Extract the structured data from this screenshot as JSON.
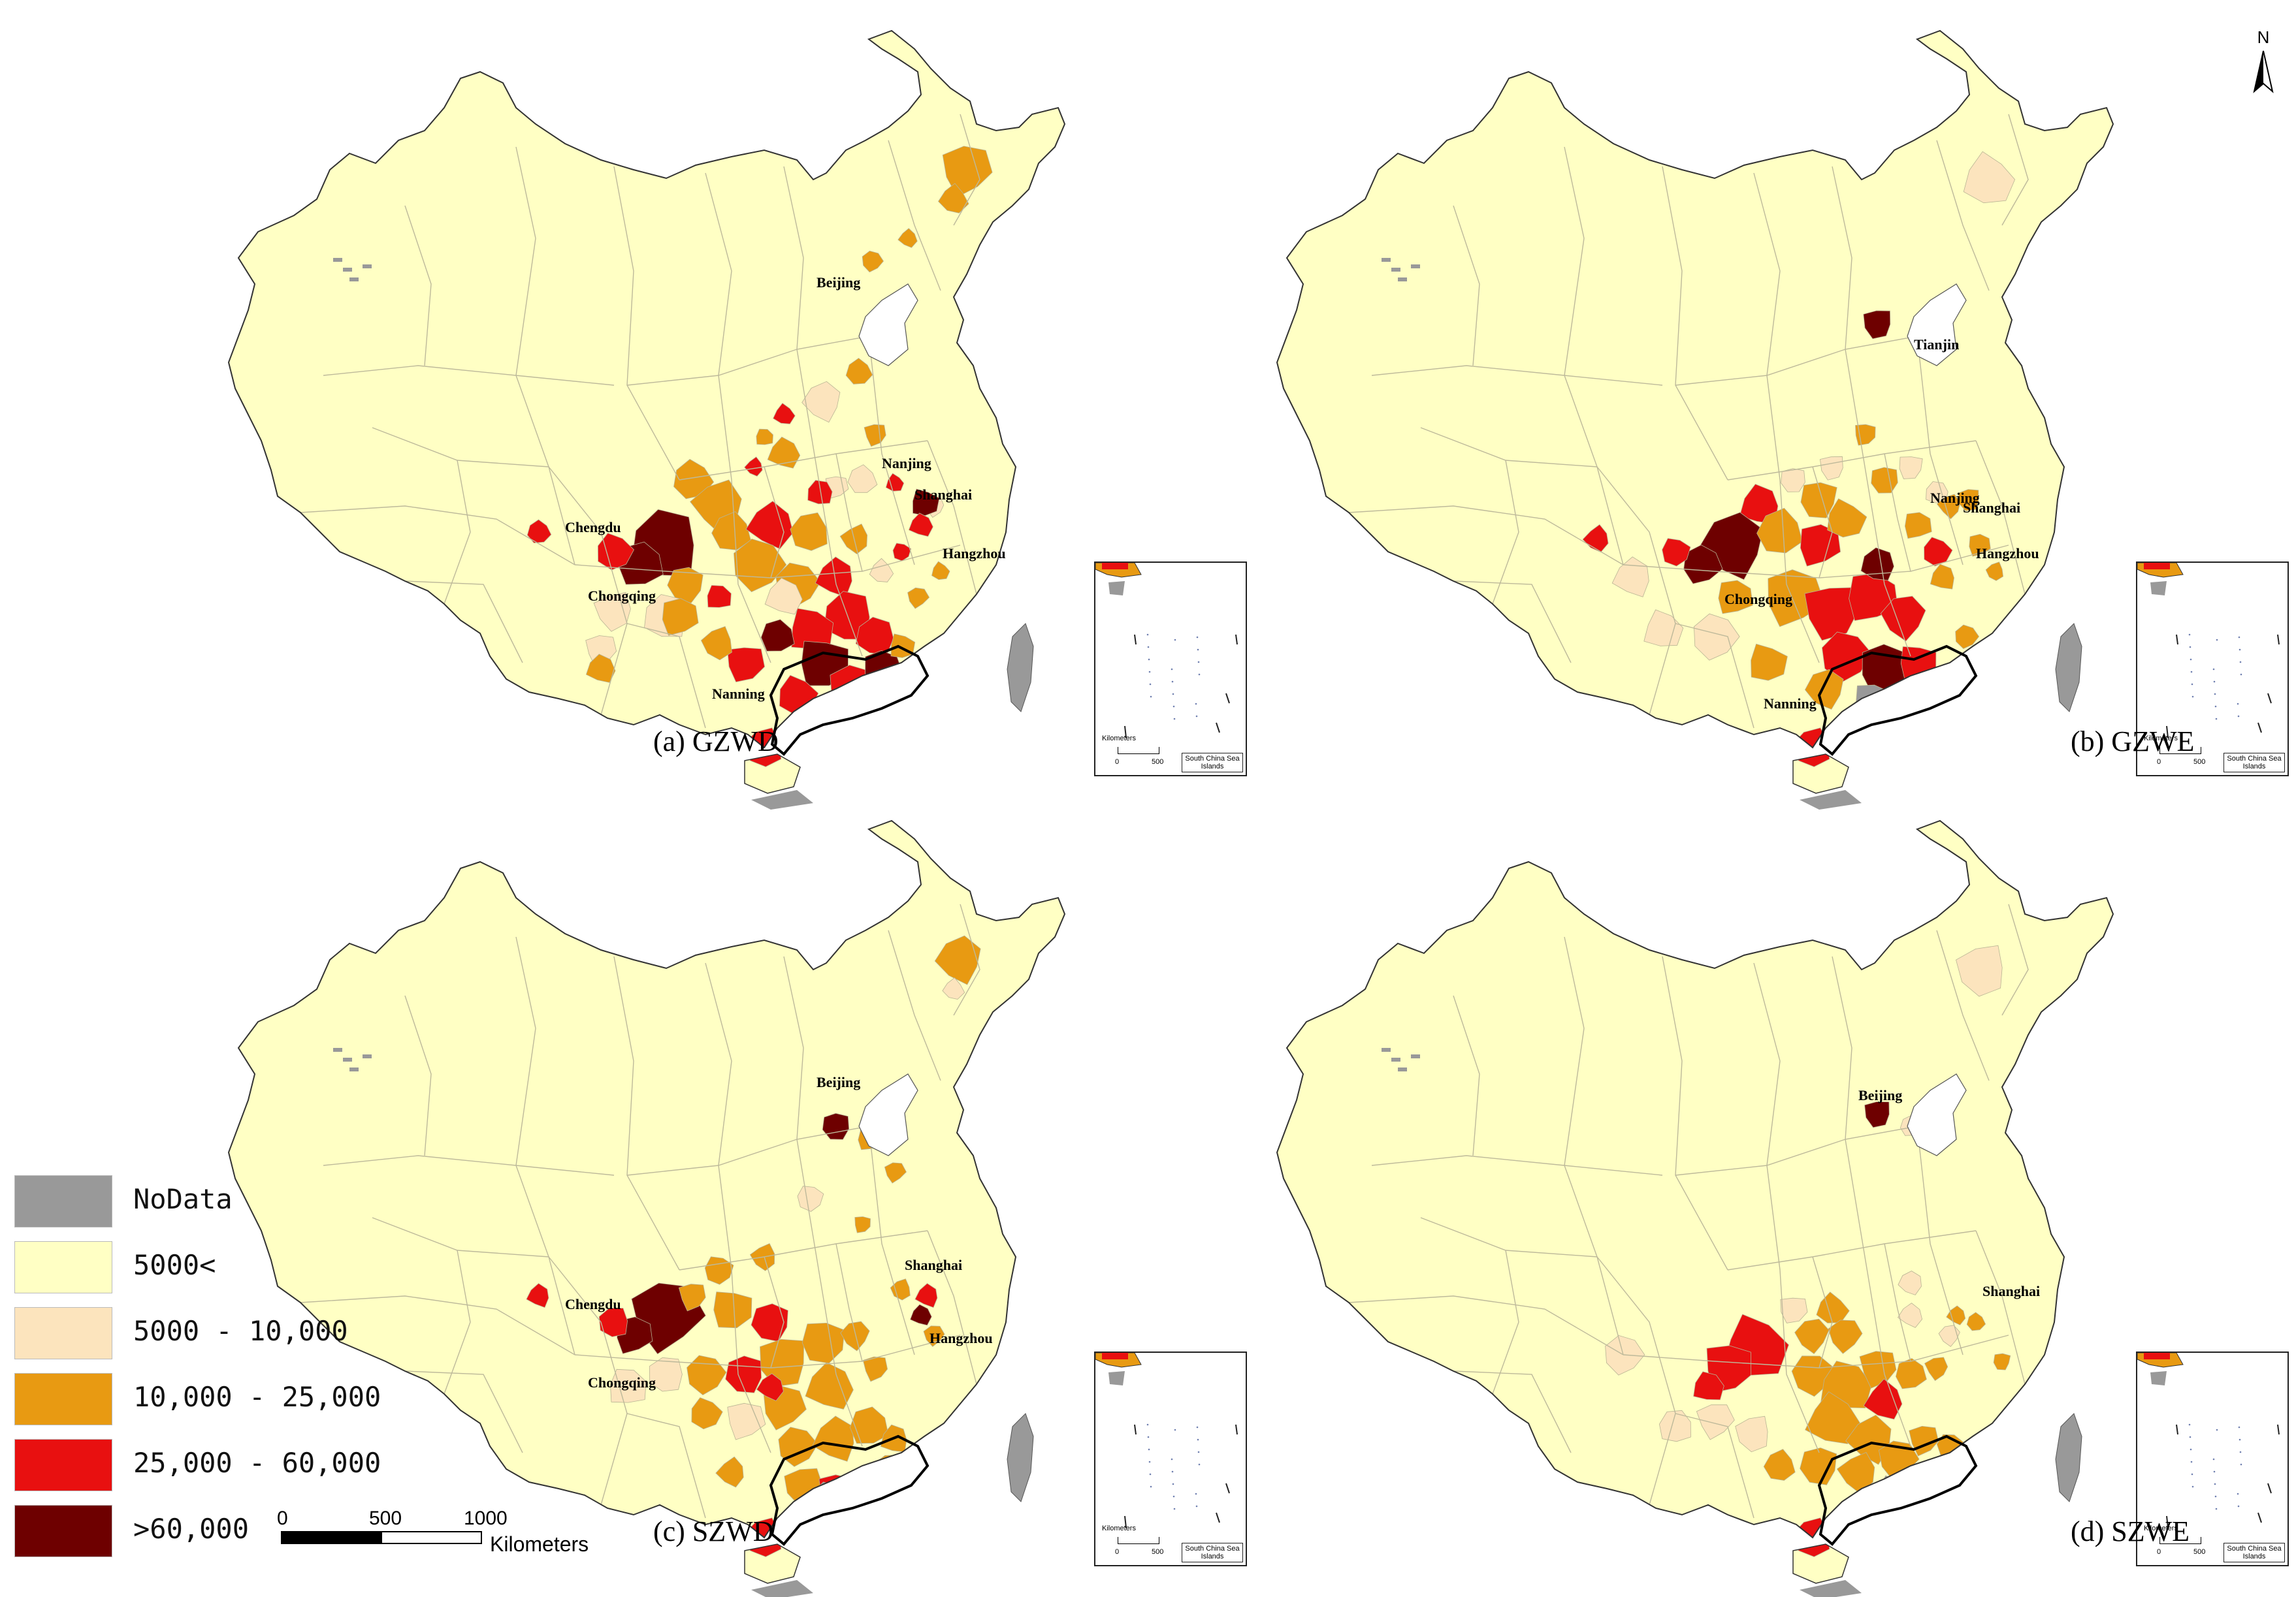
{
  "legend": {
    "items": [
      {
        "label": "NoData",
        "color": "#999999"
      },
      {
        "label": "5000<",
        "color": "#ffffc4"
      },
      {
        "label": "5000 - 10,000",
        "color": "#fce4bd"
      },
      {
        "label": "10,000 - 25,000",
        "color": "#e89a12"
      },
      {
        "label": "25,000 - 60,000",
        "color": "#e81010"
      },
      {
        "label": ">60,000",
        "color": "#6e0000"
      }
    ]
  },
  "scalebar": {
    "ticks": [
      "0",
      "500",
      "1000"
    ],
    "unit": "Kilometers"
  },
  "north_arrow": {
    "label": "N"
  },
  "inset": {
    "scale_label": "Kilometers",
    "tick0": "0",
    "tick1": "500",
    "title": "South China Sea Islands"
  },
  "panels": [
    {
      "caption": "(a) GZWD",
      "cities": [
        "Beijing",
        "Nanjing",
        "Shanghai",
        "Chengdu",
        "Chongqing",
        "Hangzhou",
        "Nanning"
      ]
    },
    {
      "caption": "(b) GZWE",
      "cities": [
        "Tianjin",
        "Nanjing",
        "Shanghai",
        "Hangzhou",
        "Chongqing",
        "Nanning"
      ]
    },
    {
      "caption": "(c) SZWD",
      "cities": [
        "Beijing",
        "Shanghai",
        "Chengdu",
        "Hangzhou",
        "Chongqing"
      ]
    },
    {
      "caption": "(d) SZWE",
      "cities": [
        "Beijing",
        "Shanghai"
      ]
    }
  ]
}
